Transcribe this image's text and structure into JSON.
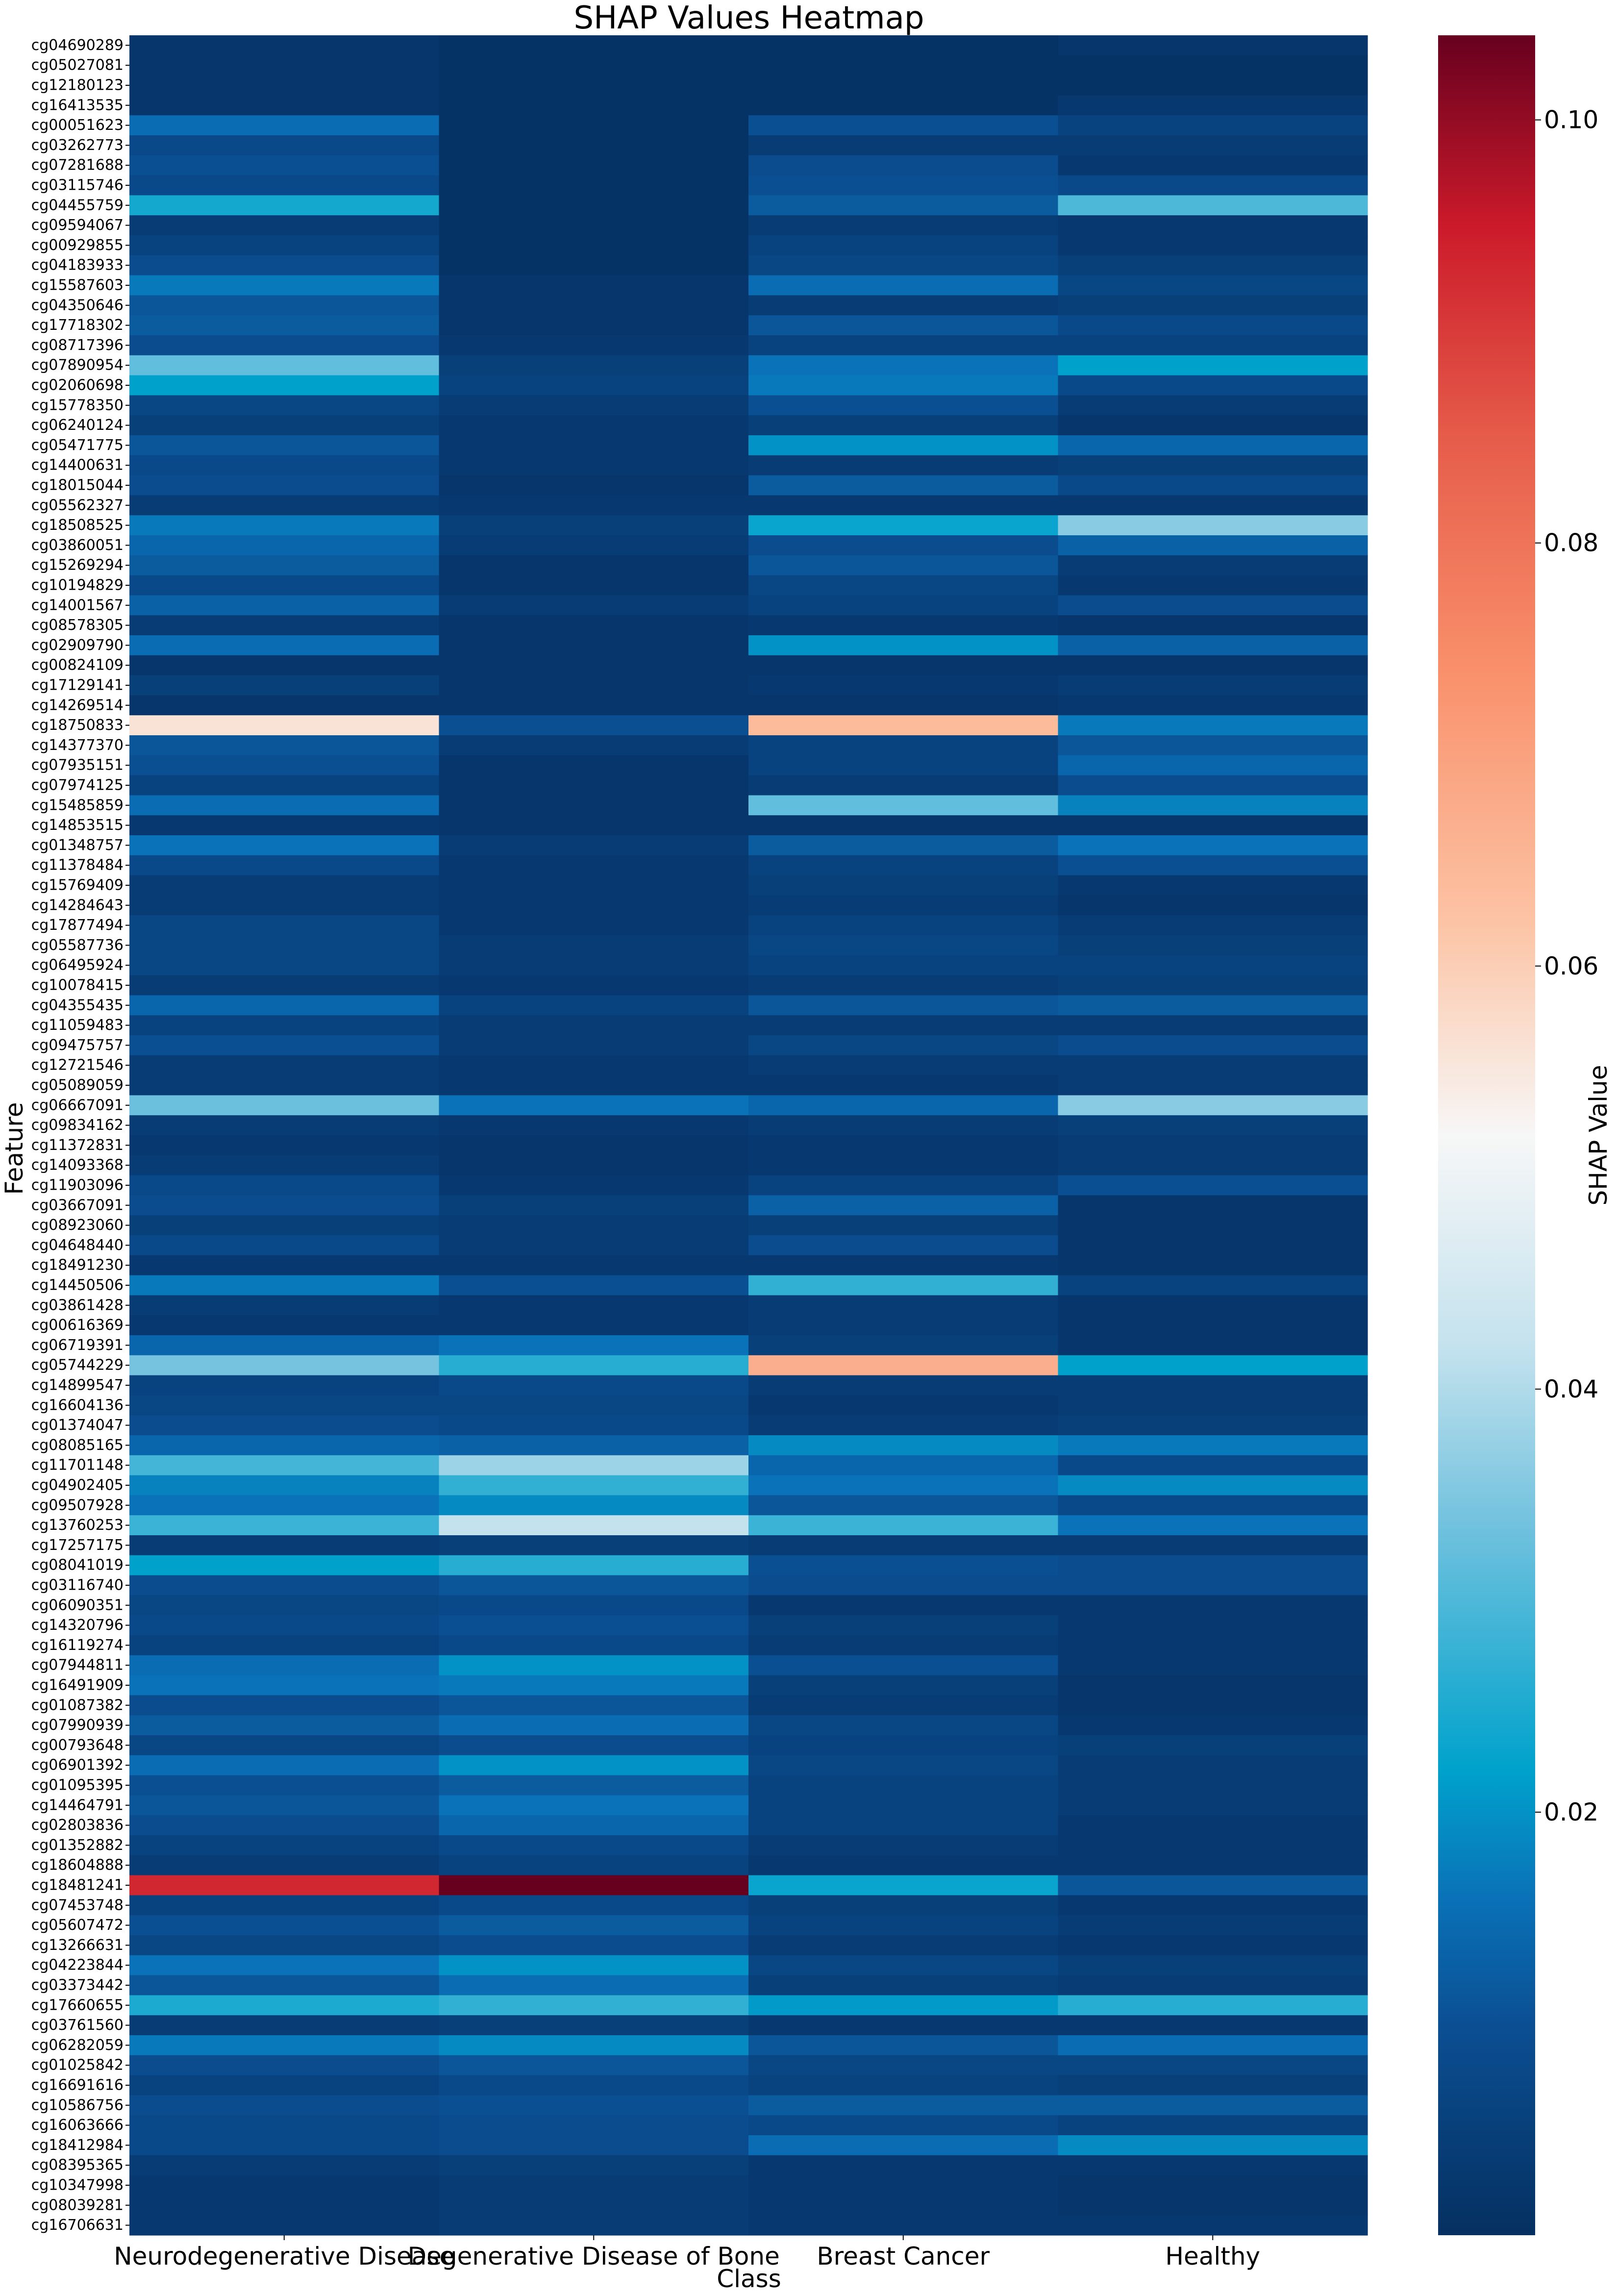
{
  "chart_data": {
    "type": "heatmap",
    "title": "SHAP Values Heatmap",
    "xlabel": "Class",
    "ylabel": "Feature",
    "colorbar_label": "SHAP Value",
    "colormap": "RdBu_r",
    "vmin": 0.0,
    "vmax": 0.104,
    "colorbar_ticks": [
      0.02,
      0.04,
      0.06,
      0.08,
      0.1
    ],
    "colorbar_tick_labels": [
      "0.02",
      "0.04",
      "0.06",
      "0.08",
      "0.10"
    ],
    "colorbar_stops": [
      {
        "value": 0.0,
        "color": "#053061"
      },
      {
        "value": 0.01,
        "color": "#0b4f93"
      },
      {
        "value": 0.016,
        "color": "#0a72b8"
      },
      {
        "value": 0.022,
        "color": "#00a2cc"
      },
      {
        "value": 0.034,
        "color": "#75c3df"
      },
      {
        "value": 0.042,
        "color": "#c4e2ee"
      },
      {
        "value": 0.052,
        "color": "#f7f7f7"
      },
      {
        "value": 0.062,
        "color": "#fcc4a5"
      },
      {
        "value": 0.074,
        "color": "#f9906b"
      },
      {
        "value": 0.085,
        "color": "#e65c4a"
      },
      {
        "value": 0.095,
        "color": "#cb1a2a"
      },
      {
        "value": 0.104,
        "color": "#67001f"
      }
    ],
    "classes": [
      "Neurodegenerative Disease",
      "Degenerative Disease of Bone",
      "Breast Cancer",
      "Healthy"
    ],
    "features": [
      "cg04690289",
      "cg05027081",
      "cg12180123",
      "cg16413535",
      "cg00051623",
      "cg03262773",
      "cg07281688",
      "cg03115746",
      "cg04455759",
      "cg09594067",
      "cg00929855",
      "cg04183933",
      "cg15587603",
      "cg04350646",
      "cg17718302",
      "cg08717396",
      "cg07890954",
      "cg02060698",
      "cg15778350",
      "cg06240124",
      "cg05471775",
      "cg14400631",
      "cg18015044",
      "cg05562327",
      "cg18508525",
      "cg03860051",
      "cg15269294",
      "cg10194829",
      "cg14001567",
      "cg08578305",
      "cg02909790",
      "cg00824109",
      "cg17129141",
      "cg14269514",
      "cg18750833",
      "cg14377370",
      "cg07935151",
      "cg07974125",
      "cg15485859",
      "cg14853515",
      "cg01348757",
      "cg11378484",
      "cg15769409",
      "cg14284643",
      "cg17877494",
      "cg05587736",
      "cg06495924",
      "cg10078415",
      "cg04355435",
      "cg11059483",
      "cg09475757",
      "cg12721546",
      "cg05089059",
      "cg06667091",
      "cg09834162",
      "cg11372831",
      "cg14093368",
      "cg11903096",
      "cg03667091",
      "cg08923060",
      "cg04648440",
      "cg18491230",
      "cg14450506",
      "cg03861428",
      "cg00616369",
      "cg06719391",
      "cg05744229",
      "cg14899547",
      "cg16604136",
      "cg01374047",
      "cg08085165",
      "cg11701148",
      "cg04902405",
      "cg09507928",
      "cg13760253",
      "cg17257175",
      "cg08041019",
      "cg03116740",
      "cg06090351",
      "cg14320796",
      "cg16119274",
      "cg07944811",
      "cg16491909",
      "cg01087382",
      "cg07990939",
      "cg00793648",
      "cg06901392",
      "cg01095395",
      "cg14464791",
      "cg02803836",
      "cg01352882",
      "cg18604888",
      "cg18481241",
      "cg07453748",
      "cg05607472",
      "cg13266631",
      "cg04223844",
      "cg03373442",
      "cg17660655",
      "cg03761560",
      "cg06282059",
      "cg01025842",
      "cg16691616",
      "cg10586756",
      "cg16063666",
      "cg18412984",
      "cg08395365",
      "cg10347998",
      "cg08039281",
      "cg16706631"
    ],
    "values": [
      [
        0.002,
        0.001,
        0.001,
        0.002
      ],
      [
        0.002,
        0.001,
        0.001,
        0.001
      ],
      [
        0.002,
        0.001,
        0.001,
        0.001
      ],
      [
        0.002,
        0.001,
        0.001,
        0.003
      ],
      [
        0.015,
        0.001,
        0.01,
        0.006
      ],
      [
        0.008,
        0.001,
        0.004,
        0.004
      ],
      [
        0.01,
        0.001,
        0.009,
        0.003
      ],
      [
        0.008,
        0.001,
        0.01,
        0.008
      ],
      [
        0.024,
        0.001,
        0.012,
        0.03
      ],
      [
        0.004,
        0.001,
        0.004,
        0.003
      ],
      [
        0.006,
        0.001,
        0.006,
        0.003
      ],
      [
        0.009,
        0.001,
        0.007,
        0.005
      ],
      [
        0.017,
        0.002,
        0.015,
        0.007
      ],
      [
        0.011,
        0.002,
        0.004,
        0.005
      ],
      [
        0.012,
        0.002,
        0.011,
        0.008
      ],
      [
        0.009,
        0.003,
        0.006,
        0.006
      ],
      [
        0.032,
        0.005,
        0.016,
        0.022
      ],
      [
        0.022,
        0.006,
        0.017,
        0.008
      ],
      [
        0.007,
        0.004,
        0.01,
        0.004
      ],
      [
        0.005,
        0.003,
        0.005,
        0.002
      ],
      [
        0.011,
        0.003,
        0.02,
        0.014
      ],
      [
        0.008,
        0.003,
        0.004,
        0.005
      ],
      [
        0.009,
        0.002,
        0.012,
        0.008
      ],
      [
        0.004,
        0.003,
        0.003,
        0.003
      ],
      [
        0.017,
        0.005,
        0.023,
        0.036
      ],
      [
        0.014,
        0.004,
        0.009,
        0.013
      ],
      [
        0.012,
        0.002,
        0.011,
        0.004
      ],
      [
        0.008,
        0.002,
        0.007,
        0.003
      ],
      [
        0.013,
        0.004,
        0.006,
        0.009
      ],
      [
        0.004,
        0.002,
        0.003,
        0.002
      ],
      [
        0.015,
        0.002,
        0.02,
        0.013
      ],
      [
        0.002,
        0.002,
        0.002,
        0.002
      ],
      [
        0.005,
        0.002,
        0.003,
        0.004
      ],
      [
        0.002,
        0.002,
        0.002,
        0.003
      ],
      [
        0.056,
        0.01,
        0.064,
        0.017
      ],
      [
        0.011,
        0.004,
        0.006,
        0.011
      ],
      [
        0.01,
        0.002,
        0.006,
        0.014
      ],
      [
        0.006,
        0.002,
        0.004,
        0.009
      ],
      [
        0.015,
        0.002,
        0.032,
        0.018
      ],
      [
        0.003,
        0.002,
        0.002,
        0.002
      ],
      [
        0.016,
        0.004,
        0.012,
        0.016
      ],
      [
        0.008,
        0.003,
        0.006,
        0.01
      ],
      [
        0.004,
        0.003,
        0.005,
        0.003
      ],
      [
        0.004,
        0.003,
        0.004,
        0.002
      ],
      [
        0.007,
        0.003,
        0.006,
        0.004
      ],
      [
        0.007,
        0.004,
        0.007,
        0.005
      ],
      [
        0.007,
        0.004,
        0.006,
        0.006
      ],
      [
        0.004,
        0.003,
        0.004,
        0.005
      ],
      [
        0.014,
        0.006,
        0.011,
        0.012
      ],
      [
        0.006,
        0.004,
        0.004,
        0.004
      ],
      [
        0.01,
        0.004,
        0.007,
        0.009
      ],
      [
        0.004,
        0.003,
        0.004,
        0.004
      ],
      [
        0.004,
        0.003,
        0.003,
        0.004
      ],
      [
        0.033,
        0.016,
        0.014,
        0.036
      ],
      [
        0.004,
        0.003,
        0.004,
        0.005
      ],
      [
        0.003,
        0.002,
        0.003,
        0.004
      ],
      [
        0.004,
        0.002,
        0.003,
        0.004
      ],
      [
        0.008,
        0.003,
        0.006,
        0.01
      ],
      [
        0.009,
        0.005,
        0.013,
        0.002
      ],
      [
        0.005,
        0.004,
        0.005,
        0.002
      ],
      [
        0.008,
        0.004,
        0.009,
        0.002
      ],
      [
        0.003,
        0.003,
        0.003,
        0.002
      ],
      [
        0.017,
        0.01,
        0.027,
        0.006
      ],
      [
        0.004,
        0.003,
        0.004,
        0.002
      ],
      [
        0.003,
        0.003,
        0.004,
        0.002
      ],
      [
        0.014,
        0.016,
        0.005,
        0.002
      ],
      [
        0.034,
        0.026,
        0.067,
        0.022
      ],
      [
        0.006,
        0.008,
        0.004,
        0.004
      ],
      [
        0.007,
        0.007,
        0.003,
        0.004
      ],
      [
        0.009,
        0.008,
        0.004,
        0.005
      ],
      [
        0.014,
        0.013,
        0.019,
        0.017
      ],
      [
        0.029,
        0.038,
        0.014,
        0.008
      ],
      [
        0.018,
        0.027,
        0.016,
        0.019
      ],
      [
        0.016,
        0.019,
        0.011,
        0.008
      ],
      [
        0.028,
        0.042,
        0.028,
        0.016
      ],
      [
        0.004,
        0.005,
        0.004,
        0.004
      ],
      [
        0.022,
        0.026,
        0.01,
        0.009
      ],
      [
        0.009,
        0.011,
        0.009,
        0.009
      ],
      [
        0.007,
        0.008,
        0.003,
        0.003
      ],
      [
        0.008,
        0.01,
        0.005,
        0.003
      ],
      [
        0.006,
        0.008,
        0.004,
        0.003
      ],
      [
        0.015,
        0.02,
        0.01,
        0.003
      ],
      [
        0.016,
        0.017,
        0.005,
        0.002
      ],
      [
        0.009,
        0.011,
        0.004,
        0.002
      ],
      [
        0.012,
        0.015,
        0.007,
        0.003
      ],
      [
        0.007,
        0.009,
        0.006,
        0.005
      ],
      [
        0.015,
        0.02,
        0.007,
        0.004
      ],
      [
        0.01,
        0.012,
        0.006,
        0.004
      ],
      [
        0.011,
        0.016,
        0.006,
        0.004
      ],
      [
        0.009,
        0.014,
        0.006,
        0.003
      ],
      [
        0.006,
        0.008,
        0.004,
        0.003
      ],
      [
        0.004,
        0.006,
        0.003,
        0.003
      ],
      [
        0.093,
        0.104,
        0.023,
        0.011
      ],
      [
        0.006,
        0.008,
        0.005,
        0.003
      ],
      [
        0.01,
        0.012,
        0.006,
        0.004
      ],
      [
        0.007,
        0.009,
        0.004,
        0.003
      ],
      [
        0.016,
        0.02,
        0.007,
        0.005
      ],
      [
        0.011,
        0.015,
        0.005,
        0.004
      ],
      [
        0.025,
        0.027,
        0.021,
        0.026
      ],
      [
        0.004,
        0.005,
        0.003,
        0.003
      ],
      [
        0.017,
        0.019,
        0.011,
        0.015
      ],
      [
        0.009,
        0.011,
        0.007,
        0.007
      ],
      [
        0.006,
        0.008,
        0.006,
        0.005
      ],
      [
        0.009,
        0.01,
        0.012,
        0.012
      ],
      [
        0.008,
        0.009,
        0.008,
        0.006
      ],
      [
        0.008,
        0.009,
        0.015,
        0.019
      ],
      [
        0.004,
        0.005,
        0.003,
        0.003
      ],
      [
        0.003,
        0.004,
        0.003,
        0.002
      ],
      [
        0.003,
        0.004,
        0.003,
        0.002
      ],
      [
        0.003,
        0.004,
        0.003,
        0.003
      ]
    ]
  }
}
